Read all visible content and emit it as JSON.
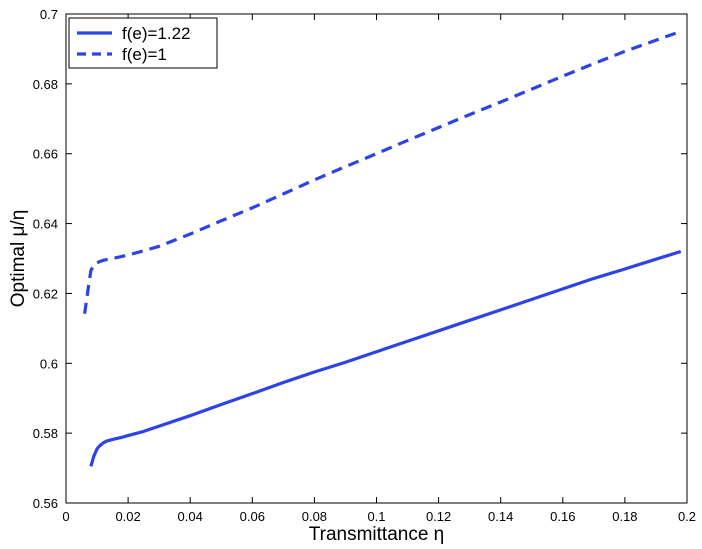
{
  "chart_data": {
    "type": "line",
    "xlabel": "Transmittance η",
    "ylabel": "Optimal μ/η",
    "xlim": [
      0,
      0.2
    ],
    "ylim": [
      0.56,
      0.7
    ],
    "x_ticks": [
      "0",
      "0.02",
      "0.04",
      "0.06",
      "0.08",
      "0.1",
      "0.12",
      "0.14",
      "0.16",
      "0.18",
      "0.2"
    ],
    "y_ticks": [
      "0.56",
      "0.58",
      "0.6",
      "0.62",
      "0.64",
      "0.66",
      "0.68",
      "0.7"
    ],
    "grid": false,
    "legend_position": "top-left",
    "series": [
      {
        "name": "f(e)=1.22",
        "style": "solid",
        "color": "#2d43e6",
        "x": [
          0.008,
          0.009,
          0.01,
          0.011,
          0.012,
          0.013,
          0.015,
          0.018,
          0.02,
          0.025,
          0.03,
          0.04,
          0.05,
          0.06,
          0.07,
          0.08,
          0.09,
          0.1,
          0.11,
          0.12,
          0.13,
          0.14,
          0.15,
          0.16,
          0.17,
          0.18,
          0.19,
          0.198
        ],
        "y": [
          0.5705,
          0.5735,
          0.5755,
          0.5765,
          0.5772,
          0.5777,
          0.5782,
          0.5788,
          0.5793,
          0.5805,
          0.582,
          0.585,
          0.5882,
          0.5913,
          0.5945,
          0.5975,
          0.6003,
          0.6033,
          0.6063,
          0.6093,
          0.6123,
          0.6153,
          0.6183,
          0.6213,
          0.6243,
          0.627,
          0.6298,
          0.632
        ]
      },
      {
        "name": "f(e)=1",
        "style": "dashed",
        "color": "#2d43e6",
        "x": [
          0.006,
          0.007,
          0.008,
          0.009,
          0.01,
          0.012,
          0.015,
          0.02,
          0.025,
          0.03,
          0.04,
          0.05,
          0.06,
          0.07,
          0.08,
          0.09,
          0.1,
          0.11,
          0.12,
          0.13,
          0.14,
          0.15,
          0.16,
          0.17,
          0.18,
          0.19,
          0.198
        ],
        "y": [
          0.6142,
          0.6205,
          0.6265,
          0.6282,
          0.6288,
          0.6295,
          0.63,
          0.631,
          0.6322,
          0.6335,
          0.637,
          0.6408,
          0.6445,
          0.6485,
          0.6525,
          0.6563,
          0.66,
          0.6638,
          0.6675,
          0.6712,
          0.6748,
          0.6785,
          0.6822,
          0.6858,
          0.6893,
          0.6925,
          0.695
        ]
      }
    ]
  }
}
